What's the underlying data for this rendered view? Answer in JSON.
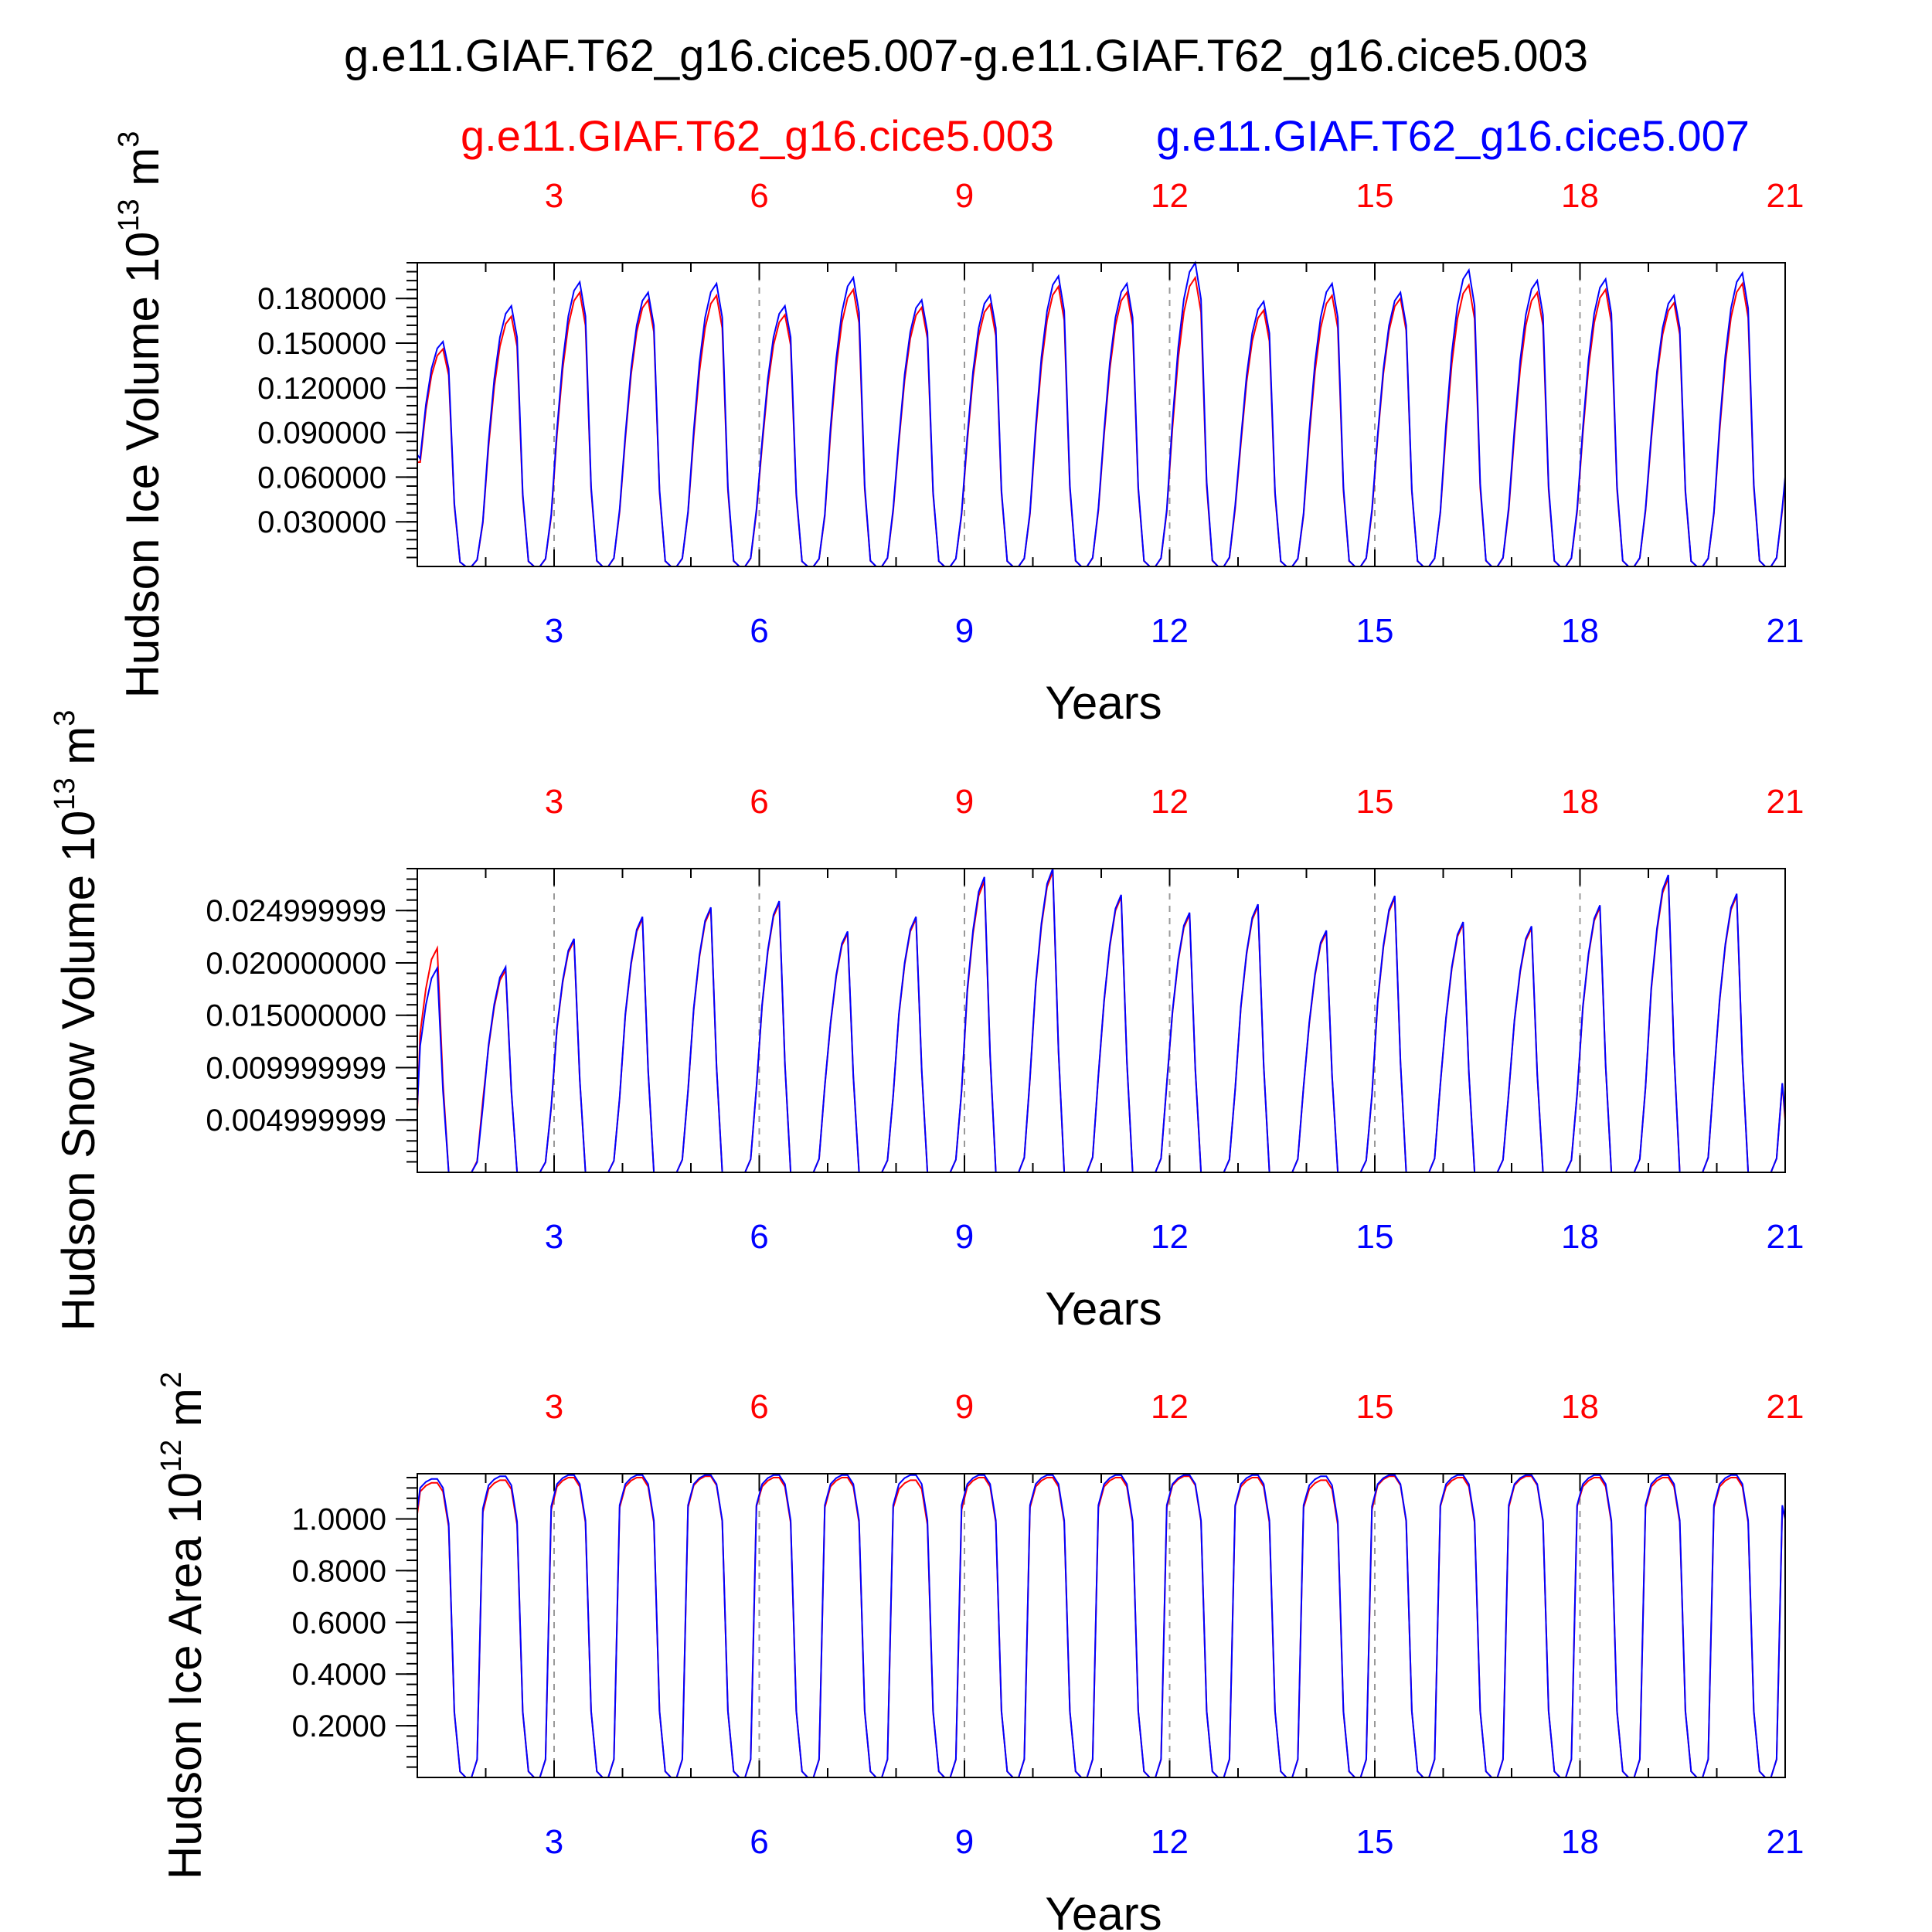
{
  "title": "g.e11.GIAF.T62_g16.cice5.007-g.e11.GIAF.T62_g16.cice5.003",
  "legend": [
    {
      "label": "g.e11.GIAF.T62_g16.cice5.003",
      "color": "#ff0000"
    },
    {
      "label": "g.e11.GIAF.T62_g16.cice5.007",
      "color": "#0000ff"
    }
  ],
  "x_tick_labels": [
    "3",
    "6",
    "9",
    "12",
    "15",
    "18",
    "21"
  ],
  "chart_data": [
    {
      "type": "line",
      "ylabel": "Hudson Ice Volume 10",
      "ylabel_exp": "13",
      "ylabel_unit": " m",
      "ylabel_unit_exp": "3",
      "xlabel": "Years",
      "xlim": [
        1,
        21
      ],
      "ylim": [
        0,
        0.204
      ],
      "yticks": [
        0.03,
        0.06,
        0.09,
        0.12,
        0.15,
        0.18
      ],
      "ytick_labels": [
        "0.030000",
        "0.060000",
        "0.090000",
        "0.120000",
        "0.150000",
        "0.180000"
      ],
      "yminor_step": 0.006,
      "grid_x": [
        3,
        6,
        9,
        12,
        15,
        18
      ],
      "monthly_shape": [
        0.48,
        0.72,
        0.88,
        0.97,
        1.0,
        0.88,
        0.28,
        0.02,
        0.0,
        0.0,
        0.03,
        0.2
      ],
      "series": [
        {
          "name": "g.e11.GIAF.T62_g16.cice5.003",
          "color": "#ff0000",
          "annual_peaks": [
            0.146,
            0.168,
            0.184,
            0.179,
            0.182,
            0.169,
            0.186,
            0.174,
            0.176,
            0.188,
            0.184,
            0.194,
            0.172,
            0.182,
            0.18,
            0.189,
            0.184,
            0.186,
            0.177,
            0.19
          ],
          "start": 0.07,
          "end": 0.058
        },
        {
          "name": "g.e11.GIAF.T62_g16.cice5.007",
          "color": "#0000ff",
          "annual_peaks": [
            0.151,
            0.175,
            0.191,
            0.184,
            0.19,
            0.175,
            0.194,
            0.179,
            0.182,
            0.195,
            0.19,
            0.204,
            0.178,
            0.19,
            0.184,
            0.199,
            0.192,
            0.193,
            0.182,
            0.197
          ],
          "start": 0.075,
          "end": 0.06
        }
      ]
    },
    {
      "type": "line",
      "ylabel": "Hudson Snow Volume 10",
      "ylabel_exp": "13",
      "ylabel_unit": " m",
      "ylabel_unit_exp": "3",
      "xlabel": "Years",
      "xlim": [
        1,
        21
      ],
      "ylim": [
        0,
        0.029
      ],
      "yticks": [
        0.005,
        0.01,
        0.015,
        0.02,
        0.025
      ],
      "ytick_labels": [
        "0.004999999",
        "0.009999999",
        "0.015000000",
        "0.020000000",
        "0.024999999"
      ],
      "yminor_step": 0.001,
      "grid_x": [
        3,
        6,
        9,
        12,
        15,
        18
      ],
      "monthly_shape": [
        0.62,
        0.82,
        0.95,
        1.0,
        0.4,
        0.0,
        0.0,
        0.0,
        0.0,
        0.0,
        0.05,
        0.32
      ],
      "series": [
        {
          "name": "g.e11.GIAF.T62_g16.cice5.003",
          "color": "#ff0000",
          "annual_peaks": [
            0.0214,
            0.0193,
            0.0221,
            0.0242,
            0.0251,
            0.0257,
            0.0228,
            0.0242,
            0.0278,
            0.0287,
            0.0263,
            0.0246,
            0.0254,
            0.0229,
            0.0262,
            0.0237,
            0.0233,
            0.0253,
            0.0281,
            0.0264
          ],
          "start": 0.006,
          "end": 0.005
        },
        {
          "name": "g.e11.GIAF.T62_g16.cice5.007",
          "color": "#0000ff",
          "annual_peaks": [
            0.0195,
            0.0196,
            0.0223,
            0.0244,
            0.0253,
            0.0259,
            0.023,
            0.0244,
            0.0282,
            0.029,
            0.0265,
            0.0248,
            0.0256,
            0.0231,
            0.0264,
            0.0239,
            0.0235,
            0.0255,
            0.0284,
            0.0266
          ],
          "start": 0.0065,
          "end": 0.0055
        }
      ]
    },
    {
      "type": "line",
      "ylabel": "Hudson Ice Area 10",
      "ylabel_exp": "12",
      "ylabel_unit": " m",
      "ylabel_unit_exp": "2",
      "xlabel": "Years",
      "xlim": [
        1,
        21
      ],
      "ylim": [
        0,
        1.175
      ],
      "yticks": [
        0.2,
        0.4,
        0.6,
        0.8,
        1.0
      ],
      "ytick_labels": [
        "0.2000",
        "0.4000",
        "0.6000",
        "0.8000",
        "1.0000"
      ],
      "yminor_step": 0.04,
      "grid_x": [
        3,
        6,
        9,
        12,
        15,
        18
      ],
      "monthly_shape": [
        0.97,
        0.99,
        1.0,
        1.0,
        0.97,
        0.85,
        0.22,
        0.02,
        0.0,
        0.0,
        0.06,
        0.9
      ],
      "series": [
        {
          "name": "g.e11.GIAF.T62_g16.cice5.003",
          "color": "#ff0000",
          "annual_peaks": [
            1.14,
            1.15,
            1.16,
            1.16,
            1.165,
            1.16,
            1.16,
            1.15,
            1.16,
            1.16,
            1.16,
            1.165,
            1.16,
            1.15,
            1.165,
            1.16,
            1.165,
            1.16,
            1.16,
            1.16
          ],
          "start": 1.02,
          "end": 1.0
        },
        {
          "name": "g.e11.GIAF.T62_g16.cice5.007",
          "color": "#0000ff",
          "annual_peaks": [
            1.155,
            1.165,
            1.17,
            1.17,
            1.17,
            1.17,
            1.17,
            1.17,
            1.17,
            1.17,
            1.17,
            1.17,
            1.17,
            1.165,
            1.17,
            1.17,
            1.17,
            1.17,
            1.17,
            1.17
          ],
          "start": 1.04,
          "end": 1.0
        }
      ]
    }
  ]
}
